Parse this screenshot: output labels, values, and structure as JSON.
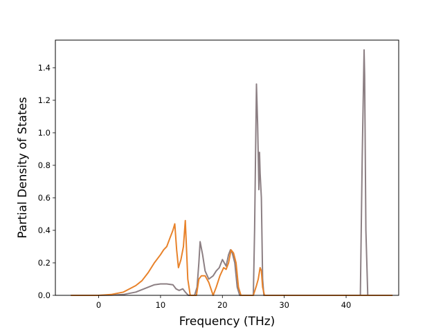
{
  "chart_data": {
    "type": "line",
    "title": "",
    "xlabel": "Frequency (THz)",
    "ylabel": "Partial Density of States",
    "xlim": [
      -7,
      48.5
    ],
    "ylim": [
      0,
      1.57
    ],
    "xticks": [
      0,
      10,
      20,
      30,
      40
    ],
    "yticks": [
      0.0,
      0.2,
      0.4,
      0.6,
      0.8,
      1.0,
      1.2,
      1.4
    ],
    "xtick_labels": [
      "0",
      "10",
      "20",
      "30",
      "40"
    ],
    "ytick_labels": [
      "0.0",
      "0.2",
      "0.4",
      "0.6",
      "0.8",
      "1.0",
      "1.2",
      "1.4"
    ],
    "grid": false,
    "series": [
      {
        "color": "#8c7f83",
        "x": [
          -4.5,
          0,
          2,
          4,
          6,
          8,
          9,
          10,
          11,
          12,
          12.5,
          13,
          13.6,
          14,
          14.5,
          15,
          15.5,
          15.9,
          16.2,
          16.4,
          16.8,
          17.2,
          17.8,
          18.5,
          19,
          19.5,
          20,
          20.6,
          21,
          21.3,
          21.6,
          22,
          22.4,
          22.8,
          23.2,
          24,
          25,
          25.2,
          25.5,
          25.7,
          25.9,
          26.0,
          26.1,
          26.3,
          26.5,
          26.7,
          27,
          28,
          30,
          35,
          40,
          42.3,
          42.6,
          42.9,
          43.0,
          43.2,
          43.5,
          44,
          47.5
        ],
        "y": [
          0,
          0,
          0.001,
          0.005,
          0.02,
          0.05,
          0.065,
          0.07,
          0.07,
          0.065,
          0.04,
          0.03,
          0.04,
          0.02,
          0.0,
          0.0,
          0.0,
          0.05,
          0.2,
          0.33,
          0.25,
          0.15,
          0.1,
          0.12,
          0.15,
          0.17,
          0.22,
          0.18,
          0.25,
          0.28,
          0.26,
          0.2,
          0.05,
          0.0,
          0.0,
          0.0,
          0.0,
          0.4,
          1.3,
          1.05,
          0.65,
          0.88,
          0.75,
          0.6,
          0.1,
          0.0,
          0.0,
          0.0,
          0.0,
          0.0,
          0.0,
          0.0,
          0.85,
          1.51,
          1.35,
          0.4,
          0.0,
          0.0,
          0.0
        ]
      },
      {
        "color": "#e8822a",
        "x": [
          -4.5,
          0,
          2,
          4,
          6,
          7,
          8,
          9,
          10,
          10.5,
          11,
          11.5,
          12,
          12.3,
          12.6,
          12.9,
          13.3,
          13.7,
          14,
          14.4,
          14.8,
          15.3,
          15.8,
          16.2,
          16.6,
          17.2,
          17.8,
          18.5,
          19,
          19.6,
          20.2,
          20.6,
          21,
          21.4,
          21.8,
          22.2,
          22.6,
          23,
          24,
          25,
          25.5,
          25.8,
          26.1,
          26.3,
          26.5,
          26.8,
          27.5,
          30,
          35,
          40,
          43,
          47.5
        ],
        "y": [
          0,
          0,
          0.005,
          0.02,
          0.06,
          0.09,
          0.14,
          0.2,
          0.25,
          0.28,
          0.3,
          0.35,
          0.4,
          0.44,
          0.28,
          0.17,
          0.22,
          0.3,
          0.46,
          0.1,
          0.0,
          0.0,
          0.0,
          0.1,
          0.12,
          0.12,
          0.08,
          0.0,
          0.05,
          0.12,
          0.17,
          0.16,
          0.2,
          0.28,
          0.26,
          0.2,
          0.05,
          0.0,
          0.0,
          0.0,
          0.06,
          0.1,
          0.17,
          0.15,
          0.05,
          0.0,
          0.0,
          0.0,
          0.0,
          0.0,
          0.0,
          0.0
        ]
      }
    ]
  }
}
